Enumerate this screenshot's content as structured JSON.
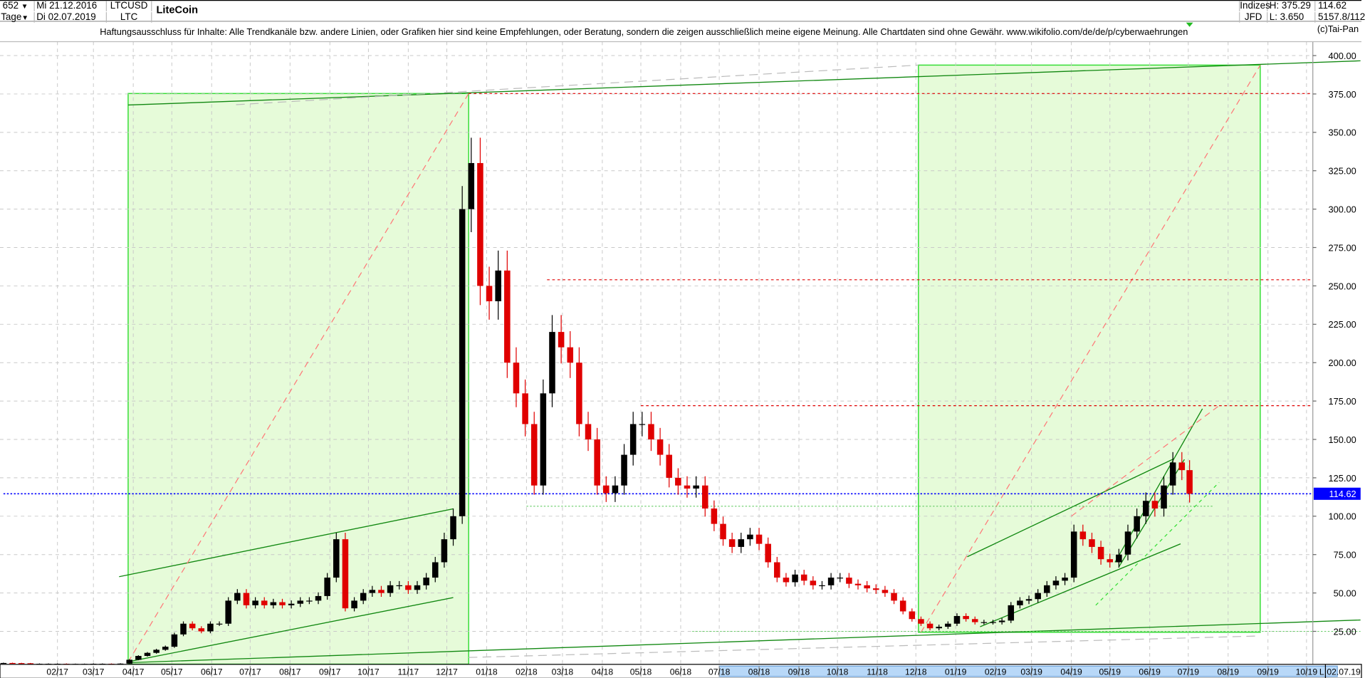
{
  "header": {
    "bars_count": "652",
    "period": "Tage",
    "start_date": "Mi 21.12.2016",
    "end_date": "Di 02.07.2019",
    "symbol": "LTCUSD",
    "symbol_short": "LTC",
    "title": "LiteCoin",
    "exchange_line1": "Indizes",
    "exchange_line2": "JFD",
    "high": "H: 375.29",
    "low": "L: 3.650",
    "last": "114.62",
    "volume": "5157.8/112",
    "copyright": "(c)Tai-Pan"
  },
  "disclaimer": "Haftungsausschluss für Inhalte: Alle Trendkanäle bzw. andere Linien, oder Grafiken hier sind keine Empfehlungen, oder Beratung, sondern die zeigen ausschließlich meine eigene Meinung. Alle Chartdaten sind ohne Gewähr.  www.wikifolio.com/de/de/p/cyberwaehrungen",
  "icons": {
    "dropdown": "triangle-down-icon",
    "marker": "green-triangle-marker-icon"
  },
  "chart_data": {
    "type": "candlestick",
    "x_axis": {
      "type": "date",
      "range": [
        "2016-12-21",
        "2019-10-25"
      ],
      "tick_labels": [
        "02/17",
        "03/17",
        "04/17",
        "05/17",
        "06/17",
        "07/17",
        "08/17",
        "09/17",
        "10/17",
        "11/17",
        "12/17",
        "01/18",
        "02/18",
        "03/18",
        "04/18",
        "05/18",
        "06/18",
        "07/18",
        "08/18",
        "09/18",
        "10/18",
        "11/18",
        "12/18",
        "01/19",
        "02/19",
        "03/19",
        "04/19",
        "05/19",
        "06/19",
        "07/19",
        "08/19",
        "09/19",
        "10/19"
      ],
      "tick_dates": [
        "2017-02-01",
        "2017-03-01",
        "2017-04-01",
        "2017-05-01",
        "2017-06-01",
        "2017-07-01",
        "2017-08-01",
        "2017-09-01",
        "2017-10-01",
        "2017-11-01",
        "2017-12-01",
        "2018-01-01",
        "2018-02-01",
        "2018-03-01",
        "2018-04-01",
        "2018-05-01",
        "2018-06-01",
        "2018-07-01",
        "2018-08-01",
        "2018-09-01",
        "2018-10-01",
        "2018-11-01",
        "2018-12-01",
        "2019-01-01",
        "2019-02-01",
        "2019-03-01",
        "2019-04-01",
        "2019-05-01",
        "2019-06-01",
        "2019-07-01",
        "2019-08-01",
        "2019-09-01",
        "2019-10-01"
      ],
      "highlight_range": [
        "2018-07-01",
        "2019-10-25"
      ],
      "end_marker": "L",
      "last_date_label": "02.07.19"
    },
    "y_axis": {
      "range": [
        3.65,
        400
      ],
      "ticks": [
        25,
        50,
        75,
        100,
        125,
        150,
        175,
        200,
        225,
        250,
        275,
        300,
        325,
        350,
        375,
        400
      ],
      "position": "right",
      "decimals": 2
    },
    "grid": true,
    "last_price": 114.62,
    "colors": {
      "up": "#000000",
      "down": "#e00000",
      "last_price_line": "#0000ff",
      "box_fill": "#e6fbd9",
      "box_stroke": "#33dd33",
      "trend": "#118811",
      "resistance": "#e00000",
      "projection": "#ff7777",
      "guide": "#bbbbbb",
      "axis_highlight": "#b8d8f8"
    },
    "weekly_closes": [
      [
        "2016-12-21",
        4.4
      ],
      [
        "2016-12-28",
        4.3
      ],
      [
        "2017-01-04",
        4.2
      ],
      [
        "2017-01-11",
        3.9
      ],
      [
        "2017-01-18",
        3.9
      ],
      [
        "2017-01-25",
        3.9
      ],
      [
        "2017-02-01",
        3.9
      ],
      [
        "2017-02-08",
        3.8
      ],
      [
        "2017-02-15",
        3.8
      ],
      [
        "2017-02-22",
        3.8
      ],
      [
        "2017-03-01",
        3.9
      ],
      [
        "2017-03-08",
        3.9
      ],
      [
        "2017-03-15",
        3.8
      ],
      [
        "2017-03-22",
        4.0
      ],
      [
        "2017-03-29",
        6.5
      ],
      [
        "2017-04-05",
        9
      ],
      [
        "2017-04-12",
        11
      ],
      [
        "2017-04-19",
        13
      ],
      [
        "2017-04-26",
        15
      ],
      [
        "2017-05-03",
        23
      ],
      [
        "2017-05-10",
        30
      ],
      [
        "2017-05-17",
        27
      ],
      [
        "2017-05-24",
        25
      ],
      [
        "2017-05-31",
        30
      ],
      [
        "2017-06-07",
        30
      ],
      [
        "2017-06-14",
        45
      ],
      [
        "2017-06-21",
        50
      ],
      [
        "2017-06-28",
        42
      ],
      [
        "2017-07-05",
        45
      ],
      [
        "2017-07-12",
        42
      ],
      [
        "2017-07-19",
        44
      ],
      [
        "2017-07-26",
        42
      ],
      [
        "2017-08-02",
        43
      ],
      [
        "2017-08-09",
        45
      ],
      [
        "2017-08-16",
        45
      ],
      [
        "2017-08-23",
        48
      ],
      [
        "2017-08-30",
        60
      ],
      [
        "2017-09-06",
        85
      ],
      [
        "2017-09-13",
        40
      ],
      [
        "2017-09-20",
        45
      ],
      [
        "2017-09-27",
        50
      ],
      [
        "2017-10-04",
        52
      ],
      [
        "2017-10-11",
        50
      ],
      [
        "2017-10-18",
        55
      ],
      [
        "2017-10-25",
        55
      ],
      [
        "2017-11-01",
        52
      ],
      [
        "2017-11-08",
        55
      ],
      [
        "2017-11-15",
        60
      ],
      [
        "2017-11-22",
        70
      ],
      [
        "2017-11-29",
        85
      ],
      [
        "2017-12-06",
        100
      ],
      [
        "2017-12-13",
        300
      ],
      [
        "2017-12-20",
        330
      ],
      [
        "2017-12-27",
        250
      ],
      [
        "2018-01-03",
        240
      ],
      [
        "2018-01-10",
        260
      ],
      [
        "2018-01-17",
        200
      ],
      [
        "2018-01-24",
        180
      ],
      [
        "2018-01-31",
        160
      ],
      [
        "2018-02-07",
        120
      ],
      [
        "2018-02-14",
        180
      ],
      [
        "2018-02-21",
        220
      ],
      [
        "2018-02-28",
        210
      ],
      [
        "2018-03-07",
        200
      ],
      [
        "2018-03-14",
        160
      ],
      [
        "2018-03-21",
        150
      ],
      [
        "2018-03-28",
        120
      ],
      [
        "2018-04-04",
        115
      ],
      [
        "2018-04-11",
        120
      ],
      [
        "2018-04-18",
        140
      ],
      [
        "2018-04-25",
        160
      ],
      [
        "2018-05-02",
        160
      ],
      [
        "2018-05-09",
        150
      ],
      [
        "2018-05-16",
        140
      ],
      [
        "2018-05-23",
        125
      ],
      [
        "2018-05-30",
        120
      ],
      [
        "2018-06-06",
        118
      ],
      [
        "2018-06-13",
        120
      ],
      [
        "2018-06-20",
        105
      ],
      [
        "2018-06-27",
        95
      ],
      [
        "2018-07-04",
        85
      ],
      [
        "2018-07-11",
        80
      ],
      [
        "2018-07-18",
        85
      ],
      [
        "2018-07-25",
        88
      ],
      [
        "2018-08-01",
        82
      ],
      [
        "2018-08-08",
        70
      ],
      [
        "2018-08-15",
        60
      ],
      [
        "2018-08-22",
        57
      ],
      [
        "2018-08-29",
        62
      ],
      [
        "2018-09-05",
        58
      ],
      [
        "2018-09-12",
        55
      ],
      [
        "2018-09-19",
        55
      ],
      [
        "2018-09-26",
        60
      ],
      [
        "2018-10-03",
        60
      ],
      [
        "2018-10-10",
        56
      ],
      [
        "2018-10-17",
        55
      ],
      [
        "2018-10-24",
        53
      ],
      [
        "2018-10-31",
        52
      ],
      [
        "2018-11-07",
        50
      ],
      [
        "2018-11-14",
        45
      ],
      [
        "2018-11-21",
        38
      ],
      [
        "2018-11-28",
        33
      ],
      [
        "2018-12-05",
        30
      ],
      [
        "2018-12-12",
        27
      ],
      [
        "2018-12-19",
        28
      ],
      [
        "2018-12-26",
        30
      ],
      [
        "2019-01-02",
        35
      ],
      [
        "2019-01-09",
        33
      ],
      [
        "2019-01-16",
        31
      ],
      [
        "2019-01-23",
        31
      ],
      [
        "2019-01-30",
        31
      ],
      [
        "2019-02-06",
        32
      ],
      [
        "2019-02-13",
        42
      ],
      [
        "2019-02-20",
        45
      ],
      [
        "2019-02-27",
        46
      ],
      [
        "2019-03-06",
        50
      ],
      [
        "2019-03-13",
        55
      ],
      [
        "2019-03-20",
        58
      ],
      [
        "2019-03-27",
        60
      ],
      [
        "2019-04-03",
        90
      ],
      [
        "2019-04-10",
        85
      ],
      [
        "2019-04-17",
        80
      ],
      [
        "2019-04-24",
        72
      ],
      [
        "2019-05-01",
        70
      ],
      [
        "2019-05-08",
        75
      ],
      [
        "2019-05-15",
        90
      ],
      [
        "2019-05-22",
        100
      ],
      [
        "2019-05-29",
        110
      ],
      [
        "2019-06-05",
        105
      ],
      [
        "2019-06-12",
        120
      ],
      [
        "2019-06-19",
        135
      ],
      [
        "2019-06-26",
        130
      ],
      [
        "2019-07-02",
        114.62
      ]
    ],
    "boxes": [
      {
        "from": [
          "2017-03-28",
          3.65
        ],
        "to": [
          "2017-12-18",
          375.29
        ]
      },
      {
        "from": [
          "2018-12-03",
          24.4
        ],
        "to": [
          "2019-08-26",
          393.8
        ]
      }
    ],
    "horizontal_levels": [
      {
        "price": 375.29,
        "from": "2017-12-18",
        "style": "resistance"
      },
      {
        "price": 254,
        "from": "2018-02-17",
        "style": "resistance"
      },
      {
        "price": 172,
        "from": "2018-05-01",
        "style": "resistance"
      },
      {
        "price": 114.62,
        "from": "2016-12-21",
        "style": "last_price_line"
      }
    ],
    "trend_lines": [
      {
        "p1": [
          "2017-03-28",
          367.8
        ],
        "p2": [
          "2019-11-12",
          396.6
        ],
        "style": "trend"
      },
      {
        "p1": [
          "2017-03-28",
          4.6
        ],
        "p2": [
          "2019-11-12",
          32.4
        ],
        "style": "trend"
      },
      {
        "p1": [
          "2017-03-21",
          60.6
        ],
        "p2": [
          "2017-12-06",
          104.8
        ],
        "style": "trend"
      },
      {
        "p1": [
          "2017-03-28",
          5.2
        ],
        "p2": [
          "2017-12-06",
          47
        ],
        "style": "trend"
      },
      {
        "p1": [
          "2019-01-10",
          73.6
        ],
        "p2": [
          "2019-06-20",
          137.5
        ],
        "style": "trend"
      },
      {
        "p1": [
          "2019-01-20",
          28
        ],
        "p2": [
          "2019-06-25",
          82
        ],
        "style": "trend"
      },
      {
        "p1": [
          "2019-05-05",
          70
        ],
        "p2": [
          "2019-07-12",
          170
        ],
        "style": "trend"
      },
      {
        "p1": [
          "2019-05-08",
          67
        ],
        "p2": [
          "2019-06-28",
          137
        ],
        "style": "trend"
      },
      {
        "p1": [
          "2017-03-28",
          5
        ],
        "p2": [
          "2017-12-18",
          375.29
        ],
        "style": "projection"
      },
      {
        "p1": [
          "2018-12-05",
          24.4
        ],
        "p2": [
          "2019-08-26",
          393.8
        ],
        "style": "projection"
      },
      {
        "p1": [
          "2019-04-01",
          100
        ],
        "p2": [
          "2019-07-25",
          172
        ],
        "style": "projection"
      },
      {
        "p1": [
          "2019-04-20",
          42
        ],
        "p2": [
          "2019-07-25",
          122
        ],
        "style": "projection_green"
      },
      {
        "p1": [
          "2017-06-20",
          368
        ],
        "p2": [
          "2018-12-03",
          393.8
        ],
        "style": "guide"
      },
      {
        "p1": [
          "2017-12-18",
          8
        ],
        "p2": [
          "2019-08-26",
          22
        ],
        "style": "guide"
      },
      {
        "p1": [
          "2018-02-01",
          106.5
        ],
        "p2": [
          "2019-07-20",
          106.5
        ],
        "style": "guide_green"
      },
      {
        "p1": [
          "2018-06-10",
          25
        ],
        "p2": [
          "2019-11-12",
          25
        ],
        "style": "guide_green"
      }
    ]
  }
}
